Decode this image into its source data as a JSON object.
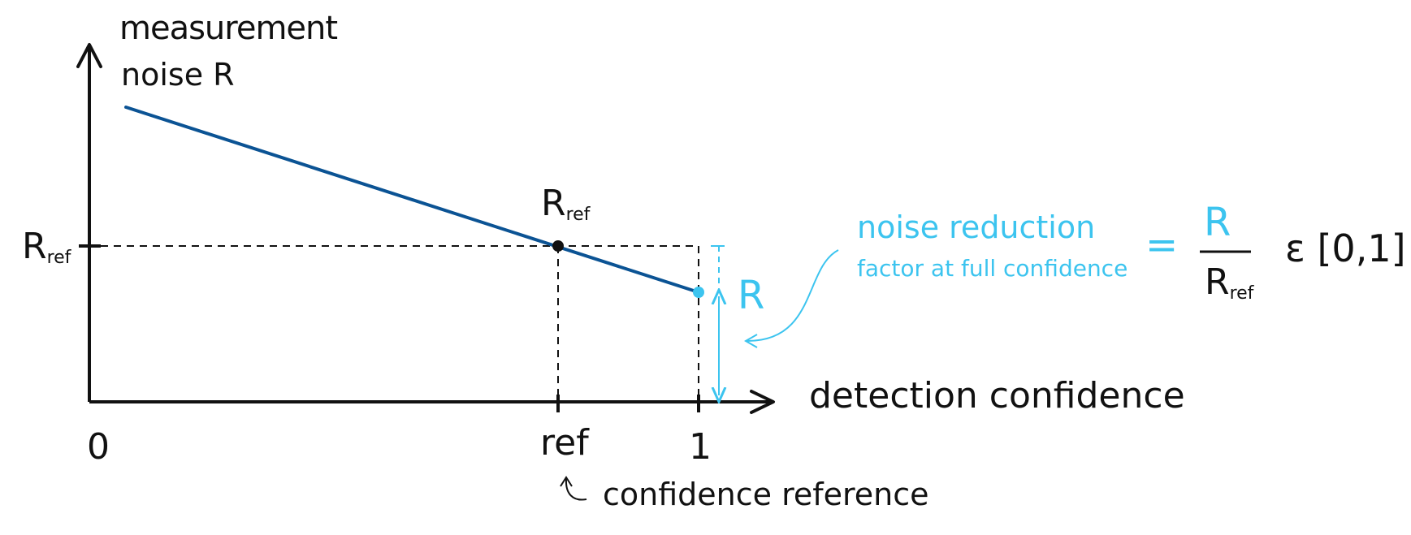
{
  "diagram": {
    "y_axis_label_line1": "measurement",
    "y_axis_label_line2": "noise R",
    "x_axis_label": "detection confidence",
    "tick_zero": "0",
    "tick_ref": "ref",
    "tick_one": "1",
    "y_tick_label": {
      "main": "R",
      "sub": "ref"
    },
    "point_label": {
      "main": "R",
      "sub": "ref"
    },
    "right_R_label": "R",
    "confidence_reference_note": "confidence reference",
    "noise_reduction_title": "noise reduction",
    "noise_reduction_subtitle": "factor at full confidence",
    "equals": "=",
    "fraction_numerator": "R",
    "fraction_denominator": {
      "main": "R",
      "sub": "ref"
    },
    "interval": "ε [0,1]"
  },
  "colors": {
    "ink": "#111111",
    "line": "#0b5394",
    "accent": "#3cc4ef"
  }
}
